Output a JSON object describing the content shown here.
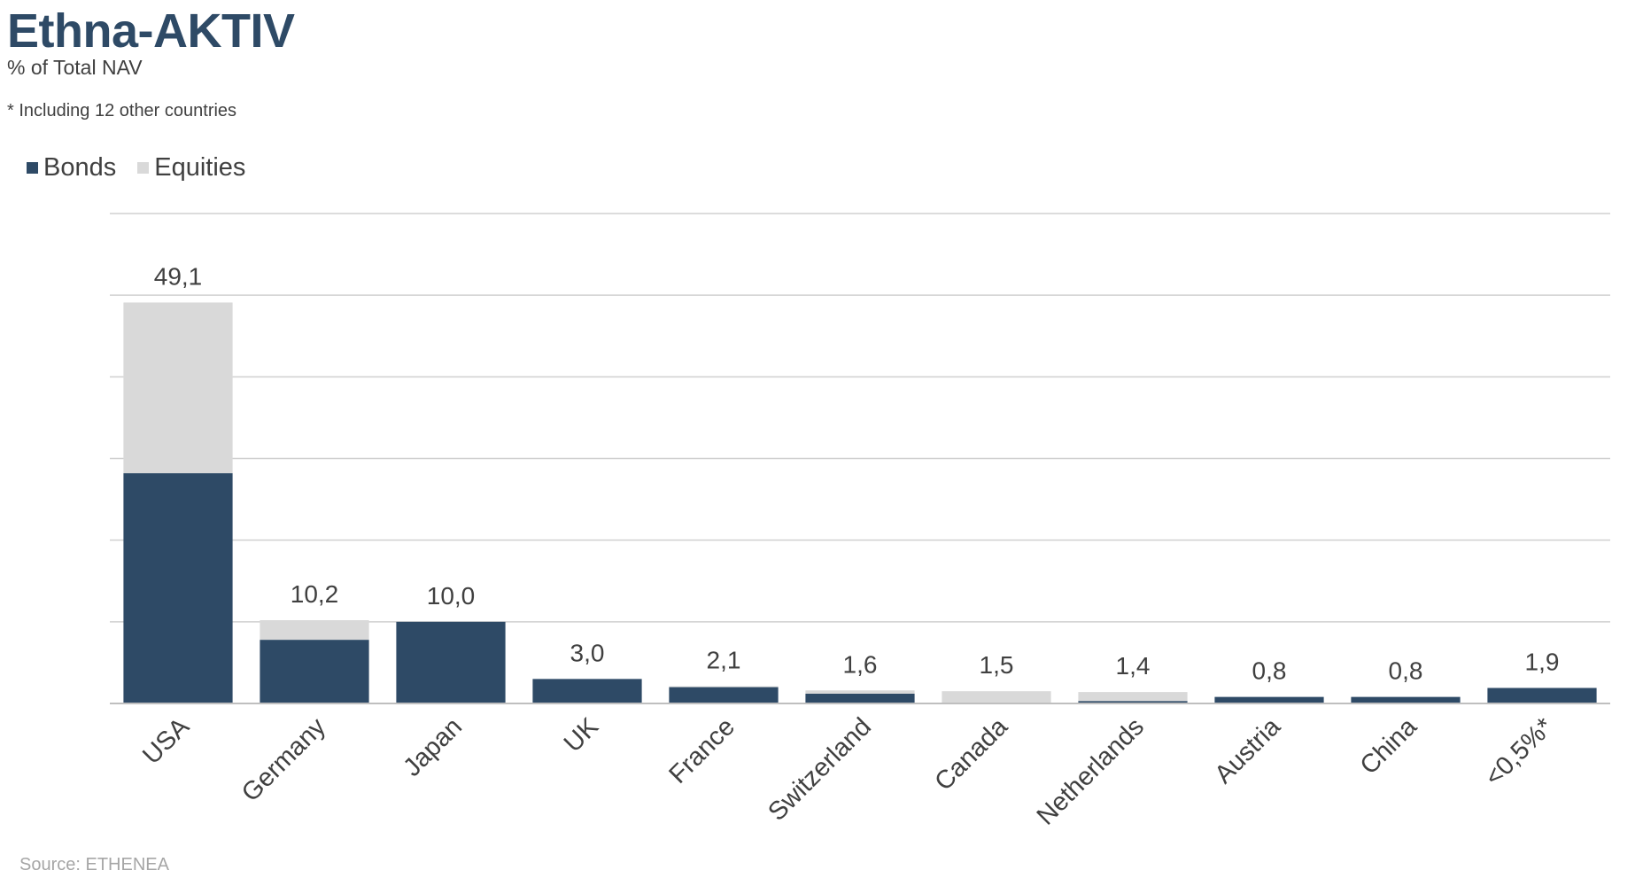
{
  "header": {
    "title": "Ethna-AKTIV",
    "subtitle": "% of Total NAV",
    "note": "* Including 12 other countries"
  },
  "footer": {
    "source": "Source: ETHENEA"
  },
  "colors": {
    "bonds": "#2e4a66",
    "equities": "#d9d9d9",
    "grid": "#d0d0d0",
    "axis": "#bfbfbf"
  },
  "chart_data": {
    "type": "bar",
    "stacked": true,
    "categories": [
      "USA",
      "Germany",
      "Japan",
      "UK",
      "France",
      "Switzerland",
      "Canada",
      "Netherlands",
      "Austria",
      "China",
      "<0,5%*"
    ],
    "totals_labels": [
      "49,1",
      "10,2",
      "10,0",
      "3,0",
      "2,1",
      "1,6",
      "1,5",
      "1,4",
      "0,8",
      "0,8",
      "1,9"
    ],
    "series": [
      {
        "name": "Bonds",
        "values": [
          28.2,
          7.8,
          10.0,
          3.0,
          2.0,
          1.2,
          0.0,
          0.3,
          0.8,
          0.8,
          1.9
        ]
      },
      {
        "name": "Equities",
        "values": [
          20.9,
          2.4,
          0.0,
          0.0,
          0.1,
          0.4,
          1.5,
          1.1,
          0.0,
          0.0,
          0.0
        ]
      }
    ],
    "ylim": [
      0,
      60
    ],
    "grid": true,
    "legend": "top-left"
  }
}
